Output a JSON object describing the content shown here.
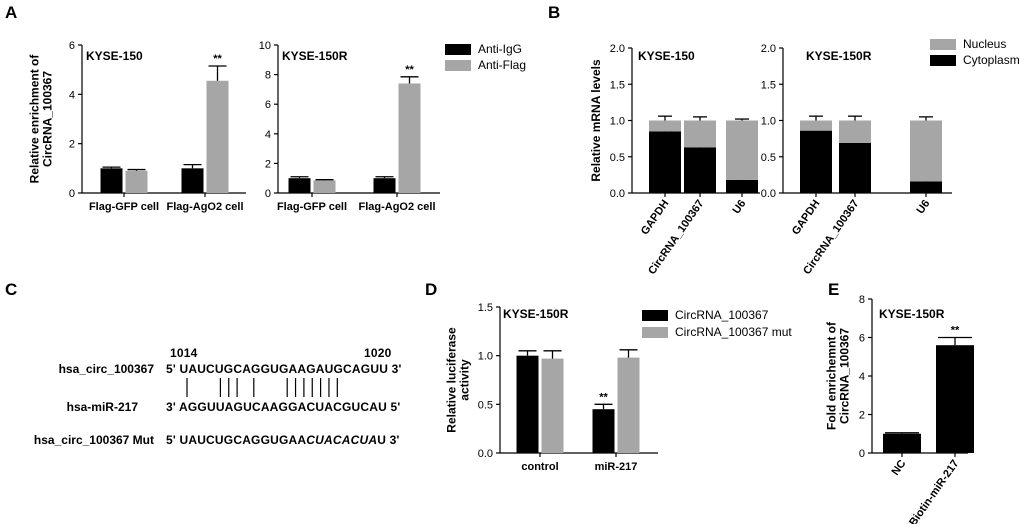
{
  "colors": {
    "black": "#000000",
    "gray": "#a6a6a6"
  },
  "panels": {
    "A": "A",
    "B": "B",
    "C": "C",
    "D": "D",
    "E": "E"
  },
  "chart_data": [
    {
      "id": "A1",
      "type": "bar",
      "title": "KYSE-150",
      "ylabel": "Relative enrichment of CircRNA_100367",
      "ylim": [
        0,
        6
      ],
      "yticks": [
        "0",
        "2",
        "4",
        "6"
      ],
      "categories": [
        "Flag-GFP cell",
        "Flag-AgO2 cell"
      ],
      "series": [
        {
          "name": "Anti-IgG",
          "color": "#000000",
          "values": [
            1.0,
            1.0
          ],
          "errors": [
            0.05,
            0.15
          ]
        },
        {
          "name": "Anti-Flag",
          "color": "#a6a6a6",
          "values": [
            0.9,
            4.55
          ],
          "errors": [
            0.05,
            0.6
          ]
        }
      ],
      "annotations": [
        {
          "category": 1,
          "series": 1,
          "text": "**"
        }
      ]
    },
    {
      "id": "A2",
      "type": "bar",
      "title": "KYSE-150R",
      "ylim": [
        0,
        10
      ],
      "yticks": [
        "0",
        "2",
        "4",
        "6",
        "8",
        "10"
      ],
      "categories": [
        "Flag-GFP cell",
        "Flag-AgO2 cell"
      ],
      "series": [
        {
          "name": "Anti-IgG",
          "color": "#000000",
          "values": [
            1.0,
            1.0
          ],
          "errors": [
            0.1,
            0.1
          ]
        },
        {
          "name": "Anti-Flag",
          "color": "#a6a6a6",
          "values": [
            0.85,
            7.4
          ],
          "errors": [
            0.05,
            0.45
          ]
        }
      ],
      "annotations": [
        {
          "category": 1,
          "series": 1,
          "text": "**"
        }
      ],
      "legend": [
        "Anti-IgG",
        "Anti-Flag"
      ]
    },
    {
      "id": "B1",
      "type": "bar",
      "stacked": true,
      "title": "KYSE-150",
      "ylabel": "Relative mRNA levels",
      "ylim": [
        0,
        2.0
      ],
      "yticks": [
        "0.0",
        "0.5",
        "1.0",
        "1.5",
        "2.0"
      ],
      "categories": [
        "GAPDH",
        "CircRNA_100367",
        "U6"
      ],
      "series": [
        {
          "name": "Cytoplasm",
          "color": "#000000",
          "values": [
            0.85,
            0.63,
            0.18
          ],
          "errors": [
            0.06,
            0.05,
            0.02
          ]
        },
        {
          "name": "Nucleus",
          "color": "#a6a6a6",
          "values": [
            0.15,
            0.37,
            0.82
          ],
          "errors": [
            0.06,
            0.05,
            0.02
          ]
        }
      ]
    },
    {
      "id": "B2",
      "type": "bar",
      "stacked": true,
      "title": "KYSE-150R",
      "ylim": [
        0,
        2.0
      ],
      "yticks": [
        "0.0",
        "0.5",
        "1.0",
        "1.5",
        "2.0"
      ],
      "categories": [
        "GAPDH",
        "CircRNA_100367",
        "U6"
      ],
      "series": [
        {
          "name": "Cytoplasm",
          "color": "#000000",
          "values": [
            0.86,
            0.69,
            0.16
          ],
          "errors": [
            0.06,
            0.06,
            0.05
          ]
        },
        {
          "name": "Nucleus",
          "color": "#a6a6a6",
          "values": [
            0.14,
            0.31,
            0.84
          ],
          "errors": [
            0.06,
            0.06,
            0.05
          ]
        }
      ],
      "legend": [
        "Nucleus",
        "Cytoplasm"
      ]
    },
    {
      "id": "D",
      "type": "bar",
      "title": "KYSE-150R",
      "ylabel": "Relative luciferase activity",
      "ylim": [
        0,
        1.5
      ],
      "yticks": [
        "0.0",
        "0.5",
        "1.0",
        "1.5"
      ],
      "categories": [
        "control",
        "miR-217"
      ],
      "series": [
        {
          "name": "CircRNA_100367",
          "color": "#000000",
          "values": [
            1.0,
            0.45
          ],
          "errors": [
            0.05,
            0.05
          ]
        },
        {
          "name": "CircRNA_100367 mut",
          "color": "#a6a6a6",
          "values": [
            0.97,
            0.98
          ],
          "errors": [
            0.08,
            0.08
          ]
        }
      ],
      "annotations": [
        {
          "category": 1,
          "series": 0,
          "text": "**"
        }
      ],
      "legend": [
        "CircRNA_100367",
        "CircRNA_100367 mut"
      ]
    },
    {
      "id": "E",
      "type": "bar",
      "title": "KYSE-150R",
      "ylabel": "Fold enrichemnt of CircRNA_100367",
      "ylim": [
        0,
        8
      ],
      "yticks": [
        "0",
        "2",
        "4",
        "6",
        "8"
      ],
      "categories": [
        "NC",
        "Biotin-miR-217"
      ],
      "series": [
        {
          "name": "",
          "color": "#000000",
          "values": [
            1.0,
            5.6
          ],
          "errors": [
            0.05,
            0.4
          ]
        }
      ],
      "annotations": [
        {
          "category": 1,
          "series": 0,
          "text": "**"
        }
      ]
    }
  ],
  "sequences": {
    "pos_start": "1014",
    "pos_end": "1020",
    "rows": [
      {
        "label": "hsa_circ_100367",
        "seq": "5' UAUCUGCAGGUGAAGAUGCAGUU 3'"
      },
      {
        "label": "hsa-miR-217",
        "seq": "3' AGGUUAGUCAAGGACUACGUCAU 5'"
      },
      {
        "label": "hsa_circ_100367 Mut",
        "seq_prefix": "5' UAUCUGCAGGUGAA",
        "seq_italic": "CUACACUA",
        "seq_suffix": "U 3'"
      }
    ]
  }
}
